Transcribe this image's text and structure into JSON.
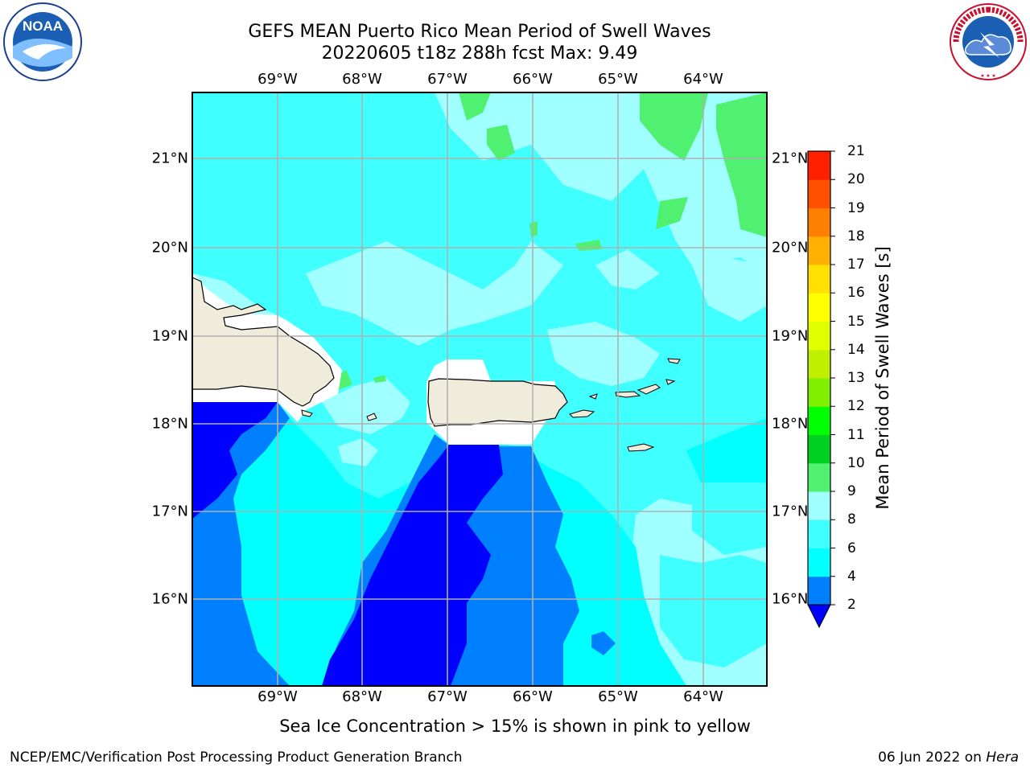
{
  "title_line1": "GEFS MEAN Puerto Rico Mean Period of Swell Waves",
  "title_line2": "20220605 t18z 288h fcst   Max: 9.49",
  "top_lon_labels": [
    "69°W",
    "68°W",
    "67°W",
    "66°W",
    "65°W",
    "64°W"
  ],
  "bottom_lon_labels": [
    "69°W",
    "68°W",
    "67°W",
    "66°W",
    "65°W",
    "64°W"
  ],
  "left_lat_labels": [
    "21°N",
    "20°N",
    "19°N",
    "18°N",
    "17°N",
    "16°N"
  ],
  "right_lat_labels": [
    "21°N",
    "20°N",
    "19°N",
    "18°N",
    "17°N",
    "16°N"
  ],
  "colorbar": {
    "label": "Mean Period of Swell Waves [s]",
    "ticks": [
      "2",
      "4",
      "6",
      "8",
      "9",
      "10",
      "11",
      "12",
      "13",
      "14",
      "15",
      "16",
      "17",
      "18",
      "19",
      "20",
      "21"
    ],
    "colors": [
      "#0000ff",
      "#0080ff",
      "#00ffff",
      "#40ffff",
      "#a0ffff",
      "#50f070",
      "#00d020",
      "#00ff00",
      "#80f000",
      "#c0f000",
      "#e0ff00",
      "#ffff00",
      "#ffe000",
      "#ffb000",
      "#ff8000",
      "#ff5000",
      "#ff2000",
      "#ff0000"
    ]
  },
  "footnote": "Sea Ice Concentration > 15% is shown in pink to yellow",
  "credit_left": "NCEP/EMC/Verification Post Processing Product Generation Branch",
  "credit_date": "06 Jun 2022 on ",
  "credit_host": "Hera",
  "logo_left_text": "NOAA",
  "logo_right_text": "NATIONAL WEATHER SERVICE"
}
